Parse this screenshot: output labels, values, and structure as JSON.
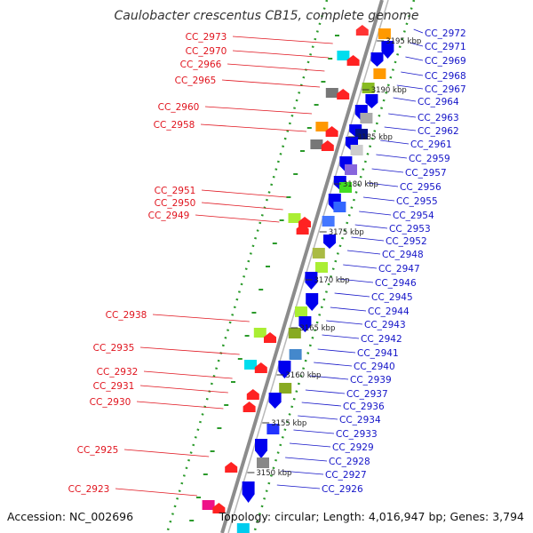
{
  "title": "Caulobacter crescentus CB15, complete genome",
  "footer": {
    "accession": "Accession: NC_002696",
    "summary": "Topology: circular; Length: 4,016,947 bp; Genes: 3,794"
  },
  "colors": {
    "reverse_label": "#e0141e",
    "forward_label": "#1414c8",
    "backbone": "#8c8c8c",
    "dotted_track": "#2a9a2a"
  },
  "ticks": [
    "3195 kbp",
    "3190 kbp",
    "3185 kbp",
    "3180 kbp",
    "3175 kbp",
    "3170 kbp",
    "3165 kbp",
    "3160 kbp",
    "3155 kbp",
    "3150 kbp"
  ],
  "reverse_labels": [
    "CC_2973",
    "CC_2970",
    "CC_2966",
    "CC_2965",
    "CC_2960",
    "CC_2958",
    "CC_2951",
    "CC_2950",
    "CC_2949",
    "CC_2938",
    "CC_2935",
    "CC_2932",
    "CC_2931",
    "CC_2930",
    "CC_2925",
    "CC_2923"
  ],
  "forward_labels": [
    "CC_2972",
    "CC_2971",
    "CC_2969",
    "CC_2968",
    "CC_2967",
    "CC_2964",
    "CC_2963",
    "CC_2962",
    "CC_2961",
    "CC_2959",
    "CC_2957",
    "CC_2956",
    "CC_2955",
    "CC_2954",
    "CC_2953",
    "CC_2952",
    "CC_2948",
    "CC_2947",
    "CC_2946",
    "CC_2945",
    "CC_2944",
    "CC_2943",
    "CC_2942",
    "CC_2941",
    "CC_2940",
    "CC_2939",
    "CC_2937",
    "CC_2936",
    "CC_2934",
    "CC_2933",
    "CC_2929",
    "CC_2928",
    "CC_2927",
    "CC_2926"
  ]
}
